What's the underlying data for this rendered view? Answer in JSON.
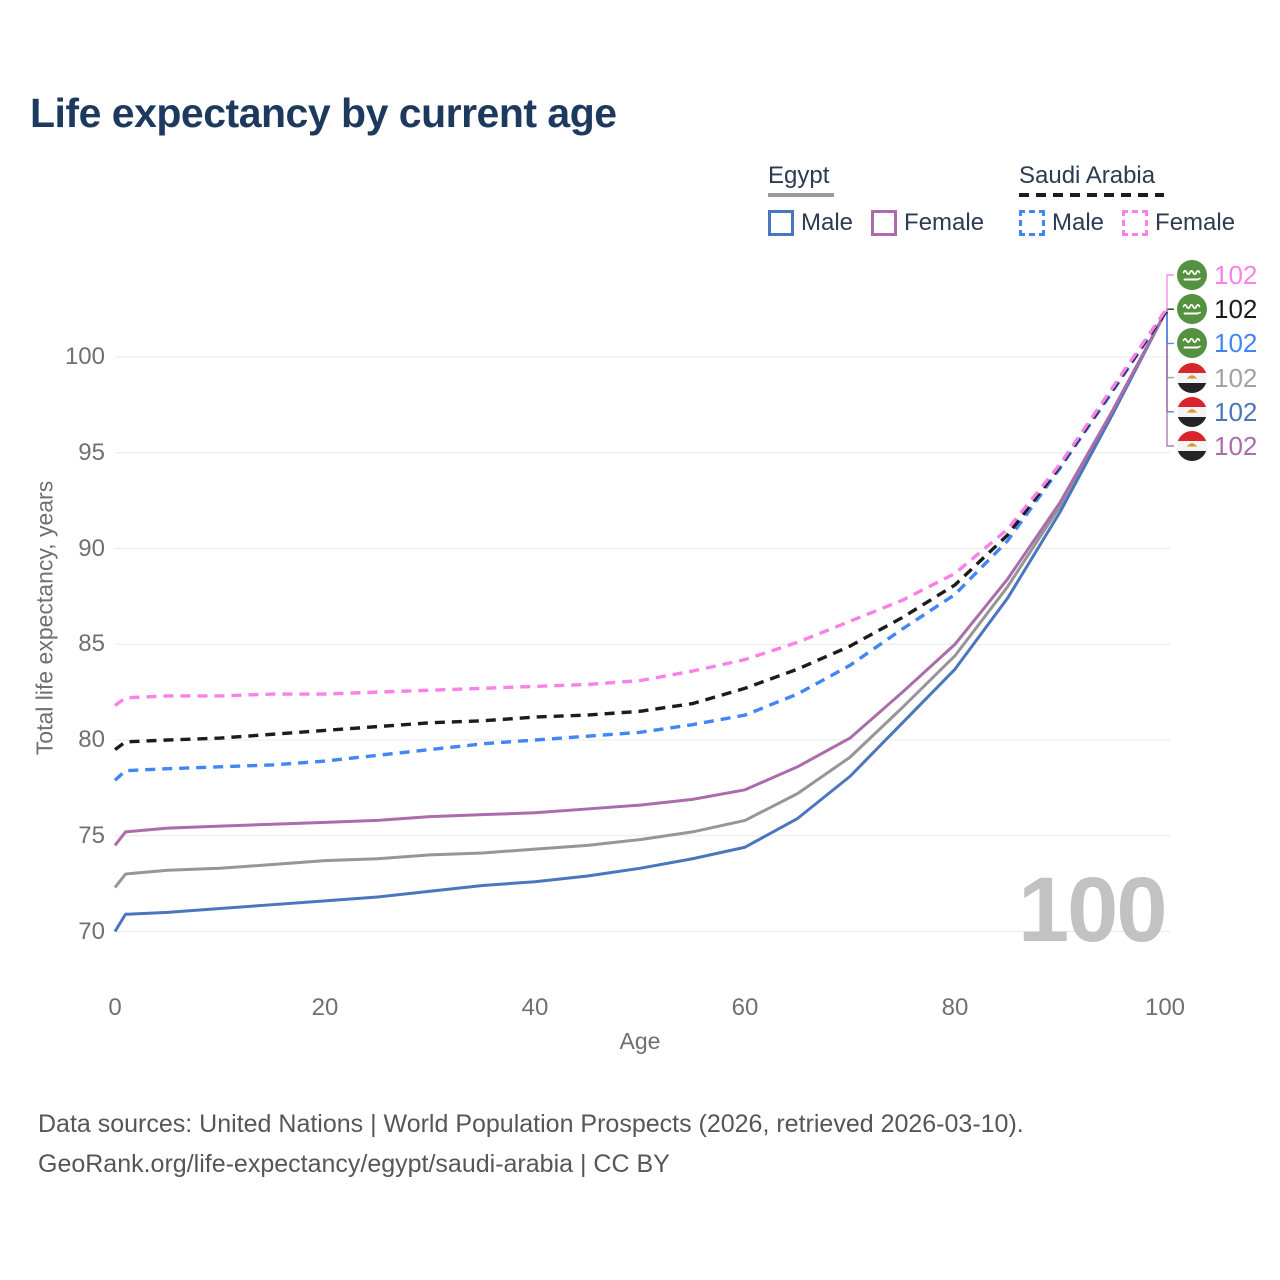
{
  "title": "Life expectancy by current age",
  "legend": {
    "groups": [
      {
        "country": "Egypt",
        "line": {
          "color": "#9b9b9b",
          "dash": "solid"
        },
        "items": [
          {
            "label": "Male",
            "color": "#4a76bd",
            "dash": "solid"
          },
          {
            "label": "Female",
            "color": "#ab6cab",
            "dash": "solid"
          }
        ]
      },
      {
        "country": "Saudi Arabia",
        "line": {
          "color": "#1c1c1c",
          "dash": "dashed"
        },
        "items": [
          {
            "label": "Male",
            "color": "#4285f4",
            "dash": "dashed"
          },
          {
            "label": "Female",
            "color": "#fb80e8",
            "dash": "dashed"
          }
        ]
      }
    ]
  },
  "y_axis": {
    "title": "Total life expectancy, years",
    "ticks": [
      100,
      95,
      90,
      85,
      80,
      75,
      70
    ]
  },
  "x_axis": {
    "title": "Age",
    "ticks": [
      0,
      20,
      40,
      60,
      80,
      100
    ]
  },
  "watermark": "100",
  "end_labels": [
    {
      "flag": "saudi-arabia",
      "series": "Saudi Arabia Female",
      "value": "102",
      "color": "#fb80e8"
    },
    {
      "flag": "saudi-arabia",
      "series": "Saudi Arabia (total)",
      "value": "102",
      "color": "#1c1c1c"
    },
    {
      "flag": "saudi-arabia",
      "series": "Saudi Arabia Male",
      "value": "102",
      "color": "#4285f4"
    },
    {
      "flag": "egypt",
      "series": "Egypt (total)",
      "value": "102",
      "color": "#a3a3a3"
    },
    {
      "flag": "egypt",
      "series": "Egypt Male",
      "value": "102",
      "color": "#4a76bd"
    },
    {
      "flag": "egypt",
      "series": "Egypt Female",
      "value": "102",
      "color": "#ab6cab"
    }
  ],
  "footer": {
    "line1": "Data sources: United Nations | World Population Prospects (2026, retrieved 2026-03-10).",
    "line2": "GeoRank.org/life-expectancy/egypt/saudi-arabia | CC BY"
  },
  "chart_data": {
    "type": "line",
    "title": "Life expectancy by current age",
    "xlabel": "Age",
    "ylabel": "Total life expectancy, years",
    "xlim": [
      0,
      100
    ],
    "ylim": [
      68.8,
      103.6
    ],
    "x_ticks": [
      0,
      20,
      40,
      60,
      80,
      100
    ],
    "y_ticks": [
      70,
      75,
      80,
      85,
      90,
      95,
      100
    ],
    "grid": "horizontal",
    "legend_position": "top-right",
    "x": [
      0,
      1,
      5,
      10,
      15,
      20,
      25,
      30,
      35,
      40,
      45,
      50,
      55,
      60,
      65,
      70,
      75,
      80,
      85,
      90,
      95,
      100
    ],
    "series": [
      {
        "name": "Egypt (total)",
        "color": "#969696",
        "dash": "solid",
        "end_row": 3,
        "values": [
          72.3,
          73.0,
          73.2,
          73.3,
          73.5,
          73.7,
          73.8,
          74.0,
          74.1,
          74.3,
          74.5,
          74.8,
          75.2,
          75.8,
          77.2,
          79.1,
          81.7,
          84.4,
          88.0,
          92.2,
          97.1,
          102.3
        ]
      },
      {
        "name": "Egypt Male",
        "color": "#4a76bd",
        "dash": "solid",
        "end_row": 4,
        "values": [
          70.0,
          70.9,
          71.0,
          71.2,
          71.4,
          71.6,
          71.8,
          72.1,
          72.4,
          72.6,
          72.9,
          73.3,
          73.8,
          74.4,
          75.9,
          78.1,
          80.9,
          83.7,
          87.4,
          91.9,
          97.0,
          102.3
        ]
      },
      {
        "name": "Egypt Female",
        "color": "#ab6cab",
        "dash": "solid",
        "end_row": 5,
        "values": [
          74.5,
          75.2,
          75.4,
          75.5,
          75.6,
          75.7,
          75.8,
          76.0,
          76.1,
          76.2,
          76.4,
          76.6,
          76.9,
          77.4,
          78.6,
          80.1,
          82.5,
          85.0,
          88.4,
          92.4,
          97.2,
          102.3
        ]
      },
      {
        "name": "Saudi Arabia Male",
        "color": "#4285f4",
        "dash": "dashed",
        "end_row": 2,
        "values": [
          77.9,
          78.4,
          78.5,
          78.6,
          78.7,
          78.9,
          79.2,
          79.5,
          79.8,
          80.0,
          80.2,
          80.4,
          80.8,
          81.3,
          82.4,
          83.9,
          85.8,
          87.6,
          90.4,
          94.2,
          98.2,
          102.3
        ]
      },
      {
        "name": "Saudi Arabia (total)",
        "color": "#1c1c1c",
        "dash": "dashed",
        "end_row": 1,
        "values": [
          79.5,
          79.9,
          80.0,
          80.1,
          80.3,
          80.5,
          80.7,
          80.9,
          81.0,
          81.2,
          81.3,
          81.5,
          81.9,
          82.7,
          83.7,
          84.9,
          86.4,
          88.1,
          90.7,
          94.3,
          98.3,
          102.3
        ]
      },
      {
        "name": "Saudi Arabia Female",
        "color": "#fb80e8",
        "dash": "dashed",
        "end_row": 0,
        "values": [
          81.8,
          82.2,
          82.3,
          82.3,
          82.4,
          82.4,
          82.5,
          82.6,
          82.7,
          82.8,
          82.9,
          83.1,
          83.6,
          84.2,
          85.1,
          86.2,
          87.3,
          88.7,
          91.0,
          94.4,
          98.4,
          102.4
        ]
      }
    ]
  }
}
